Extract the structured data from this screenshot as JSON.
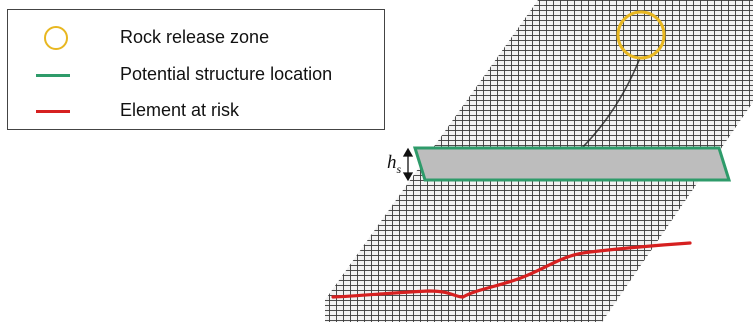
{
  "legend": {
    "items": [
      {
        "label": "Rock release zone",
        "symbol": "circle",
        "color": "#e8b720"
      },
      {
        "label": "Potential structure location",
        "symbol": "line",
        "color": "#2e9b6a"
      },
      {
        "label": "Element at risk",
        "symbol": "line",
        "color": "#d62020"
      }
    ]
  },
  "structure_height_label": {
    "main": "h",
    "sub": "s"
  },
  "colors": {
    "mesh": "#3a3a3a",
    "release_zone": "#e8b720",
    "structure_outline": "#2e9b6a",
    "structure_fill": "#bdbdbd",
    "element_at_risk": "#d62020"
  }
}
